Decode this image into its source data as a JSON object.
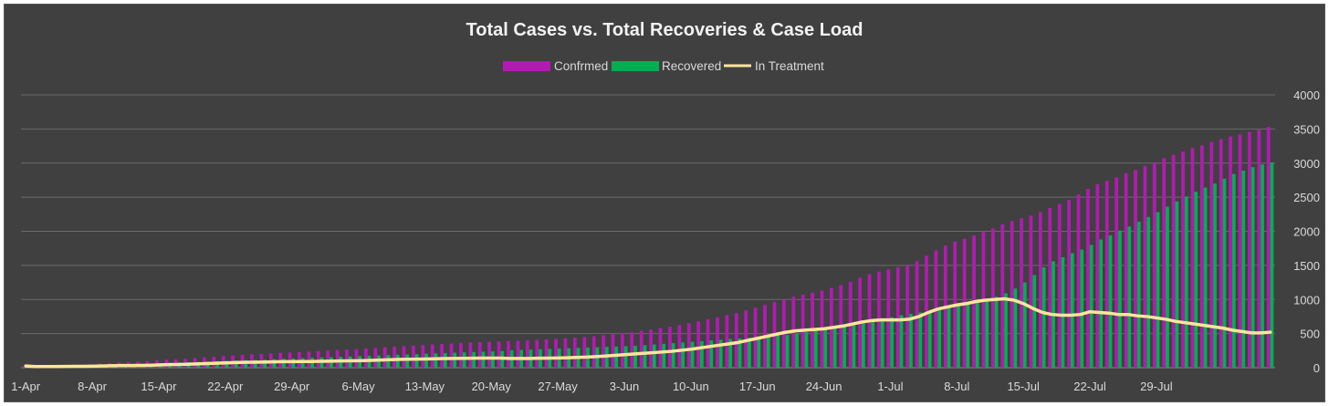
{
  "chart_data": {
    "type": "bar",
    "title": "Total Cases vs. Total Recoveries & Case Load",
    "start_date": "1-Apr",
    "x_tick_labels": [
      "1-Apr",
      "8-Apr",
      "15-Apr",
      "22-Apr",
      "29-Apr",
      "6-May",
      "13-May",
      "20-May",
      "27-May",
      "3-Jun",
      "10-Jun",
      "17-Jun",
      "24-Jun",
      "1-Jul",
      "8-Jul",
      "15-Jul",
      "22-Jul",
      "29-Jul"
    ],
    "ylim": [
      0,
      4000
    ],
    "y_ticks": [
      "0",
      "500",
      "1000",
      "1500",
      "2000",
      "2500",
      "3000",
      "3500",
      "4000"
    ],
    "y_axis_position": "right",
    "grid": true,
    "legend_position": "top",
    "series": [
      {
        "name": "Confrmed",
        "type": "bar",
        "color": "#b31ab3",
        "values": [
          18,
          22,
          26,
          30,
          35,
          40,
          45,
          52,
          60,
          68,
          76,
          82,
          88,
          95,
          105,
          115,
          122,
          130,
          140,
          150,
          160,
          170,
          180,
          188,
          195,
          202,
          210,
          218,
          224,
          230,
          236,
          243,
          250,
          258,
          265,
          272,
          280,
          290,
          300,
          310,
          318,
          325,
          332,
          340,
          348,
          355,
          362,
          368,
          375,
          380,
          385,
          390,
          395,
          400,
          408,
          415,
          422,
          430,
          440,
          450,
          462,
          476,
          490,
          505,
          520,
          540,
          560,
          580,
          600,
          625,
          650,
          680,
          710,
          740,
          770,
          800,
          840,
          880,
          920,
          960,
          1000,
          1040,
          1070,
          1100,
          1130,
          1170,
          1210,
          1260,
          1320,
          1370,
          1410,
          1440,
          1470,
          1500,
          1560,
          1640,
          1720,
          1790,
          1850,
          1890,
          1940,
          1990,
          2040,
          2100,
          2150,
          2190,
          2230,
          2280,
          2340,
          2400,
          2460,
          2540,
          2620,
          2690,
          2740,
          2790,
          2850,
          2900,
          2960,
          3010,
          3070,
          3120,
          3170,
          3220,
          3260,
          3310,
          3350,
          3390,
          3420,
          3460,
          3490,
          3530
        ]
      },
      {
        "name": "Recovered",
        "type": "bar",
        "color": "#00b050",
        "values": [
          0,
          5,
          10,
          14,
          17,
          20,
          25,
          30,
          35,
          40,
          45,
          50,
          55,
          60,
          65,
          70,
          75,
          80,
          85,
          90,
          95,
          100,
          105,
          110,
          115,
          120,
          125,
          130,
          135,
          140,
          145,
          150,
          155,
          160,
          165,
          170,
          175,
          180,
          185,
          190,
          195,
          200,
          205,
          210,
          215,
          220,
          225,
          230,
          235,
          240,
          245,
          255,
          260,
          265,
          270,
          275,
          280,
          285,
          290,
          295,
          300,
          305,
          310,
          315,
          320,
          330,
          340,
          350,
          360,
          370,
          380,
          390,
          400,
          410,
          420,
          430,
          440,
          450,
          460,
          470,
          480,
          500,
          520,
          540,
          560,
          580,
          600,
          620,
          650,
          680,
          710,
          740,
          770,
          790,
          810,
          830,
          860,
          900,
          930,
          950,
          970,
          1000,
          1040,
          1090,
          1160,
          1250,
          1360,
          1470,
          1560,
          1620,
          1680,
          1730,
          1800,
          1880,
          1940,
          2010,
          2070,
          2140,
          2210,
          2280,
          2360,
          2440,
          2510,
          2580,
          2640,
          2700,
          2770,
          2840,
          2890,
          2940,
          2980,
          3010
        ]
      },
      {
        "name": "In Treatment",
        "type": "line",
        "color": "#ffe699",
        "values": [
          25,
          17,
          16,
          16,
          18,
          20,
          20,
          22,
          25,
          28,
          31,
          32,
          33,
          35,
          40,
          45,
          47,
          50,
          55,
          60,
          65,
          70,
          75,
          78,
          80,
          82,
          85,
          88,
          89,
          90,
          91,
          93,
          95,
          98,
          100,
          102,
          105,
          110,
          115,
          120,
          123,
          125,
          127,
          130,
          133,
          135,
          137,
          138,
          140,
          140,
          140,
          135,
          135,
          135,
          138,
          140,
          142,
          145,
          150,
          155,
          162,
          171,
          180,
          190,
          200,
          210,
          220,
          230,
          240,
          255,
          270,
          290,
          310,
          330,
          350,
          370,
          400,
          430,
          460,
          490,
          520,
          540,
          550,
          560,
          570,
          590,
          610,
          640,
          670,
          690,
          700,
          700,
          700,
          710,
          750,
          810,
          860,
          890,
          920,
          940,
          970,
          990,
          1000,
          1010,
          990,
          940,
          870,
          810,
          780,
          770,
          770,
          780,
          820,
          810,
          800,
          780,
          780,
          760,
          750,
          730,
          710,
          680,
          660,
          640,
          620,
          600,
          580,
          550,
          530,
          510,
          510,
          520
        ]
      }
    ]
  }
}
